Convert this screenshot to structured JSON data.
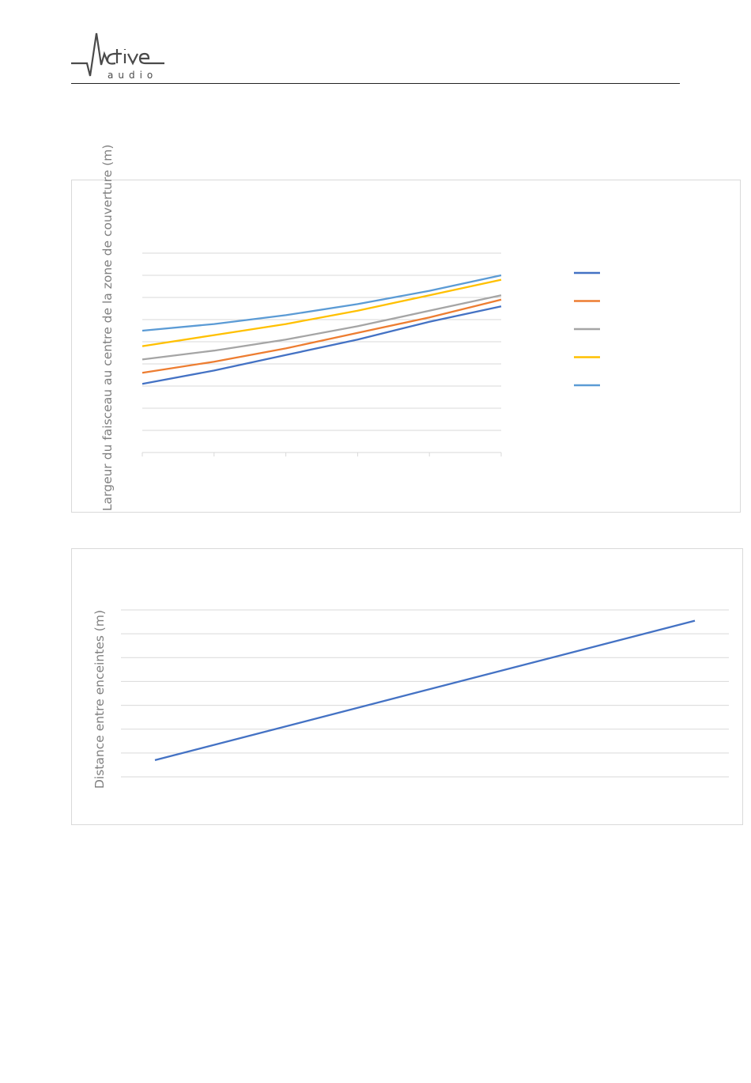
{
  "header": {
    "logo_text": "Active",
    "logo_sub": "audio"
  },
  "colors": {
    "series1": "#4472c4",
    "series2": "#ed7d31",
    "series3": "#a5a5a5",
    "series4": "#ffc000",
    "series5": "#5b9bd5",
    "grid": "#d9d9d9",
    "axis_text": "#7f7f7f"
  },
  "chart_data": [
    {
      "type": "line",
      "title": "",
      "xlabel": "",
      "ylabel": "Largeur du faisceau au centre de la zone de couverture (m)",
      "ylim": [
        0,
        9
      ],
      "grid": true,
      "legend_position": "right",
      "x": [
        0,
        1,
        2,
        3,
        4,
        5
      ],
      "series": [
        {
          "values": [
            3.1,
            3.7,
            4.4,
            5.1,
            5.9,
            6.6
          ]
        },
        {
          "values": [
            3.6,
            4.1,
            4.7,
            5.4,
            6.1,
            6.9
          ]
        },
        {
          "values": [
            4.2,
            4.6,
            5.1,
            5.7,
            6.4,
            7.1
          ]
        },
        {
          "values": [
            4.8,
            5.3,
            5.8,
            6.4,
            7.1,
            7.8
          ]
        },
        {
          "values": [
            5.5,
            5.8,
            6.2,
            6.7,
            7.3,
            8.0
          ]
        }
      ]
    },
    {
      "type": "line",
      "title": "",
      "xlabel": "",
      "ylabel": "Distance entre enceintes (m)",
      "ylim": [
        0,
        7
      ],
      "grid": true,
      "x": [
        0,
        1
      ],
      "series": [
        {
          "values": [
            0.7,
            6.55
          ]
        }
      ]
    }
  ]
}
